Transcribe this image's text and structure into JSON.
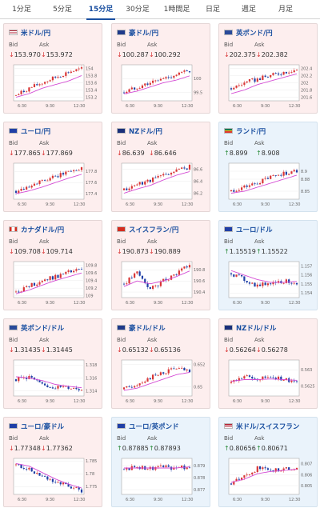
{
  "tabs": [
    {
      "label": "1分足"
    },
    {
      "label": "5分足"
    },
    {
      "label": "15分足",
      "active": true
    },
    {
      "label": "30分足"
    },
    {
      "label": "1時間足"
    },
    {
      "label": "日足"
    },
    {
      "label": "週足"
    },
    {
      "label": "月足"
    }
  ],
  "labels": {
    "bid": "Bid",
    "ask": "Ask"
  },
  "pairs": [
    {
      "name": "米ドル/円",
      "bid": "153.970",
      "ask": "153.972",
      "dir": "down",
      "flag": "us-flag-icon",
      "chart_data": {
        "type": "candlestick",
        "x_ticks": [
          "6:30",
          "9:30",
          "12:30"
        ],
        "y_ticks": [
          "153.2",
          "153.4",
          "153.6",
          "153.8",
          "154"
        ],
        "ylim": [
          153.1,
          154.1
        ],
        "trend": [
          153.25,
          153.45,
          153.6,
          153.75,
          153.9,
          153.98
        ],
        "ma": [
          153.2,
          153.3,
          153.45,
          153.55,
          153.65,
          153.8
        ]
      }
    },
    {
      "name": "豪ドル/円",
      "bid": "100.287",
      "ask": "100.292",
      "dir": "down",
      "flag": "au-flag-icon",
      "chart_data": {
        "type": "candlestick",
        "x_ticks": [
          "6:30",
          "9:30",
          "12:30"
        ],
        "y_ticks": [
          "99.5",
          "100"
        ],
        "ylim": [
          99.2,
          100.5
        ],
        "trend": [
          99.5,
          99.7,
          99.85,
          100.0,
          100.15,
          100.28
        ],
        "ma": [
          99.45,
          99.55,
          99.7,
          99.85,
          99.95,
          100.1
        ]
      }
    },
    {
      "name": "英ポンド/円",
      "bid": "202.375",
      "ask": "202.382",
      "dir": "down",
      "flag": "gb-flag-icon",
      "chart_data": {
        "type": "candlestick",
        "x_ticks": [
          "6:30",
          "9:30",
          "12:30"
        ],
        "y_ticks": [
          "201.6",
          "201.8",
          "202",
          "202.2",
          "202.4"
        ],
        "ylim": [
          201.5,
          202.5
        ],
        "trend": [
          201.85,
          202.0,
          202.1,
          202.2,
          202.3,
          202.37
        ],
        "ma": [
          201.7,
          201.8,
          201.95,
          202.05,
          202.15,
          202.25
        ]
      }
    },
    {
      "name": "ユーロ/円",
      "bid": "177.865",
      "ask": "177.869",
      "dir": "down",
      "flag": "eu-flag-icon",
      "chart_data": {
        "type": "candlestick",
        "x_ticks": [
          "6:30",
          "9:30",
          "12:30"
        ],
        "y_ticks": [
          "177.4",
          "177.6",
          "177.8"
        ],
        "ylim": [
          177.3,
          177.95
        ],
        "trend": [
          177.45,
          177.55,
          177.62,
          177.7,
          177.8,
          177.86
        ],
        "ma": [
          177.4,
          177.45,
          177.52,
          177.6,
          177.68,
          177.75
        ]
      }
    },
    {
      "name": "NZドル/円",
      "bid": "86.639",
      "ask": "86.646",
      "dir": "down",
      "flag": "nz-flag-icon",
      "chart_data": {
        "type": "candlestick",
        "x_ticks": [
          "6:30",
          "9:30",
          "12:30"
        ],
        "y_ticks": [
          "86.2",
          "86.4",
          "86.6"
        ],
        "ylim": [
          86.1,
          86.7
        ],
        "trend": [
          86.25,
          86.35,
          86.42,
          86.5,
          86.58,
          86.64
        ],
        "ma": [
          86.2,
          86.27,
          86.33,
          86.42,
          86.5,
          86.56
        ]
      }
    },
    {
      "name": "ランド/円",
      "bid": "8.899",
      "ask": "8.908",
      "dir": "up",
      "flag": "za-flag-icon",
      "chart_data": {
        "type": "candlestick",
        "x_ticks": [
          "6:30",
          "9:30",
          "12:30"
        ],
        "y_ticks": [
          "8.85",
          "8.88",
          "8.9"
        ],
        "ylim": [
          8.83,
          8.92
        ],
        "trend": [
          8.85,
          8.86,
          8.87,
          8.885,
          8.895,
          8.9
        ],
        "ma": [
          8.845,
          8.85,
          8.86,
          8.87,
          8.88,
          8.89
        ]
      }
    },
    {
      "name": "カナダドル/円",
      "bid": "109.708",
      "ask": "109.714",
      "dir": "down",
      "flag": "ca-flag-icon",
      "chart_data": {
        "type": "candlestick",
        "x_ticks": [
          "6:30",
          "9:30",
          "12:30"
        ],
        "y_ticks": [
          "109",
          "109.2",
          "109.4",
          "109.6",
          "109.8"
        ],
        "ylim": [
          108.95,
          109.9
        ],
        "trend": [
          109.1,
          109.25,
          109.4,
          109.5,
          109.62,
          109.7
        ],
        "ma": [
          109.05,
          109.15,
          109.28,
          109.4,
          109.5,
          109.6
        ]
      }
    },
    {
      "name": "スイスフラン/円",
      "bid": "190.873",
      "ask": "190.889",
      "dir": "down",
      "flag": "ch-flag-icon",
      "chart_data": {
        "type": "candlestick",
        "x_ticks": [
          "6:30",
          "9:30",
          "12:30"
        ],
        "y_ticks": [
          "190.4",
          "190.6",
          "190.8"
        ],
        "ylim": [
          190.3,
          190.95
        ],
        "trend": [
          190.55,
          190.75,
          190.45,
          190.6,
          190.75,
          190.87
        ],
        "ma": [
          190.5,
          190.6,
          190.55,
          190.6,
          190.68,
          190.78
        ]
      }
    },
    {
      "name": "ユーロ/ドル",
      "bid": "1.15519",
      "ask": "1.15522",
      "dir": "up",
      "flag": "eu-flag-icon",
      "chart_data": {
        "type": "candlestick",
        "x_ticks": [
          "6:30",
          "9:30",
          "12:30"
        ],
        "y_ticks": [
          "1.154",
          "1.155",
          "1.156",
          "1.157"
        ],
        "ylim": [
          1.1535,
          1.1575
        ],
        "trend": [
          1.1562,
          1.1555,
          1.1548,
          1.1552,
          1.1553,
          1.1552
        ],
        "ma": [
          1.1565,
          1.156,
          1.1555,
          1.1552,
          1.1552,
          1.1553
        ]
      }
    },
    {
      "name": "英ポンド/ドル",
      "bid": "1.31435",
      "ask": "1.31445",
      "dir": "down",
      "flag": "gb-flag-icon",
      "chart_data": {
        "type": "candlestick",
        "x_ticks": [
          "6:30",
          "9:30",
          "12:30"
        ],
        "y_ticks": [
          "1.314",
          "1.316",
          "1.318"
        ],
        "ylim": [
          1.3132,
          1.3188
        ],
        "trend": [
          1.3158,
          1.3162,
          1.3148,
          1.3146,
          1.3145,
          1.3143
        ],
        "ma": [
          1.3162,
          1.316,
          1.3156,
          1.315,
          1.3147,
          1.3145
        ]
      }
    },
    {
      "name": "豪ドル/ドル",
      "bid": "0.65132",
      "ask": "0.65136",
      "dir": "down",
      "flag": "au-flag-icon",
      "chart_data": {
        "type": "candlestick",
        "x_ticks": [
          "6:30",
          "9:30",
          "12:30"
        ],
        "y_ticks": [
          "0.65",
          "0.652"
        ],
        "ylim": [
          0.6492,
          0.6524
        ],
        "trend": [
          0.6498,
          0.6503,
          0.6508,
          0.6513,
          0.6517,
          0.6513
        ],
        "ma": [
          0.6497,
          0.6499,
          0.6503,
          0.6507,
          0.6511,
          0.6513
        ]
      }
    },
    {
      "name": "NZドル/ドル",
      "bid": "0.56264",
      "ask": "0.56278",
      "dir": "down",
      "flag": "nz-flag-icon",
      "chart_data": {
        "type": "candlestick",
        "x_ticks": [
          "6:30",
          "9:30",
          "12:30"
        ],
        "y_ticks": [
          "0.5625",
          "0.563"
        ],
        "ylim": [
          0.5622,
          0.5633
        ],
        "trend": [
          0.5626,
          0.5628,
          0.5627,
          0.5628,
          0.5627,
          0.5626
        ],
        "ma": [
          0.56265,
          0.5627,
          0.5627,
          0.56272,
          0.5627,
          0.56268
        ]
      }
    },
    {
      "name": "ユーロ/豪ドル",
      "bid": "1.77348",
      "ask": "1.77362",
      "dir": "down",
      "flag": "eu-flag-icon",
      "chart_data": {
        "type": "candlestick",
        "x_ticks": [
          "6:30",
          "9:30",
          "12:30"
        ],
        "y_ticks": [
          "1.775",
          "1.78",
          "1.785"
        ],
        "ylim": [
          1.772,
          1.786
        ],
        "trend": [
          1.7835,
          1.7815,
          1.779,
          1.777,
          1.775,
          1.7735
        ],
        "ma": [
          1.784,
          1.783,
          1.7805,
          1.778,
          1.776,
          1.7745
        ]
      }
    },
    {
      "name": "ユーロ/英ポンド",
      "bid": "0.87885",
      "ask": "0.87893",
      "dir": "up",
      "flag": "eu-flag-icon",
      "chart_data": {
        "type": "candlestick",
        "x_ticks": [
          "6:30",
          "9:30",
          "12:30"
        ],
        "y_ticks": [
          "0.877",
          "0.878",
          "0.879"
        ],
        "ylim": [
          0.8766,
          0.8796
        ],
        "trend": [
          0.8787,
          0.8789,
          0.8788,
          0.8789,
          0.8788,
          0.8789
        ],
        "ma": [
          0.8788,
          0.8788,
          0.8788,
          0.8788,
          0.8788,
          0.8789
        ]
      }
    },
    {
      "name": "米ドル/スイスフラン",
      "bid": "0.80656",
      "ask": "0.80671",
      "dir": "up",
      "flag": "us-flag-icon",
      "chart_data": {
        "type": "candlestick",
        "x_ticks": [
          "6:30",
          "9:30",
          "12:30"
        ],
        "y_ticks": [
          "0.805",
          "0.806",
          "0.807"
        ],
        "ylim": [
          0.8042,
          0.8075
        ],
        "trend": [
          0.8052,
          0.8058,
          0.8066,
          0.8064,
          0.8065,
          0.8066
        ],
        "ma": [
          0.8053,
          0.8056,
          0.8061,
          0.8063,
          0.8064,
          0.8065
        ]
      }
    }
  ]
}
